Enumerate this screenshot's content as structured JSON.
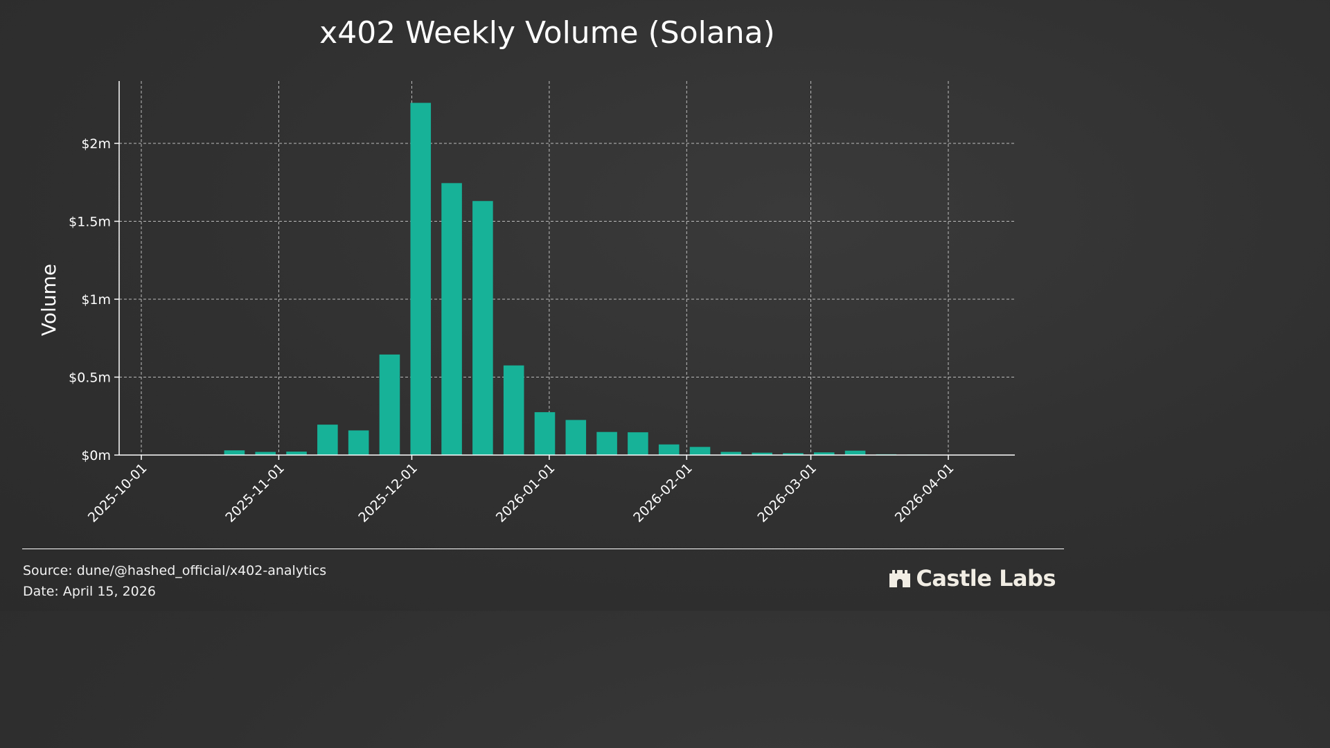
{
  "chart_data": {
    "type": "bar",
    "title": "x402 Weekly Volume (Solana)",
    "xlabel": "",
    "ylabel": "Volume",
    "x": [
      "2025-10-01",
      "2025-10-08",
      "2025-10-15",
      "2025-10-22",
      "2025-10-29",
      "2025-11-05",
      "2025-11-12",
      "2025-11-19",
      "2025-11-26",
      "2025-12-03",
      "2025-12-10",
      "2025-12-17",
      "2025-12-24",
      "2025-12-31",
      "2026-01-07",
      "2026-01-14",
      "2026-01-21",
      "2026-01-28",
      "2026-02-04",
      "2026-02-11",
      "2026-02-18",
      "2026-02-25",
      "2026-03-04",
      "2026-03-11",
      "2026-03-18",
      "2026-03-25",
      "2026-04-01"
    ],
    "values": [
      0,
      0,
      0,
      30000,
      20000,
      22000,
      195000,
      158000,
      645000,
      2260000,
      1745000,
      1630000,
      575000,
      275000,
      225000,
      148000,
      146000,
      68000,
      52000,
      20000,
      15000,
      12000,
      17000,
      28000,
      5000,
      3000,
      2000
    ],
    "ylim": [
      0,
      2400000
    ],
    "yticks": [
      0,
      500000,
      1000000,
      1500000,
      2000000
    ],
    "ytick_labels": [
      "$0m",
      "$0.5m",
      "$1m",
      "$1.5m",
      "$2m"
    ],
    "xticks": [
      "2025-10-01",
      "2025-11-01",
      "2025-12-01",
      "2026-01-01",
      "2026-02-01",
      "2026-03-01",
      "2026-04-01"
    ],
    "xlim": [
      "2025-09-26",
      "2026-04-16"
    ],
    "grid": true,
    "bar_color": "#17b298"
  },
  "footer": {
    "source": "Source: dune/@hashed_official/x402-analytics",
    "date": "Date: April 15, 2026"
  },
  "brand": {
    "name": "Castle Labs",
    "logo_icon": "castle-icon"
  },
  "colors": {
    "background": "#303030",
    "text": "#ffffff",
    "grid": "#bdbdbd",
    "bar": "#17b298",
    "brand": "#f1ede4"
  }
}
